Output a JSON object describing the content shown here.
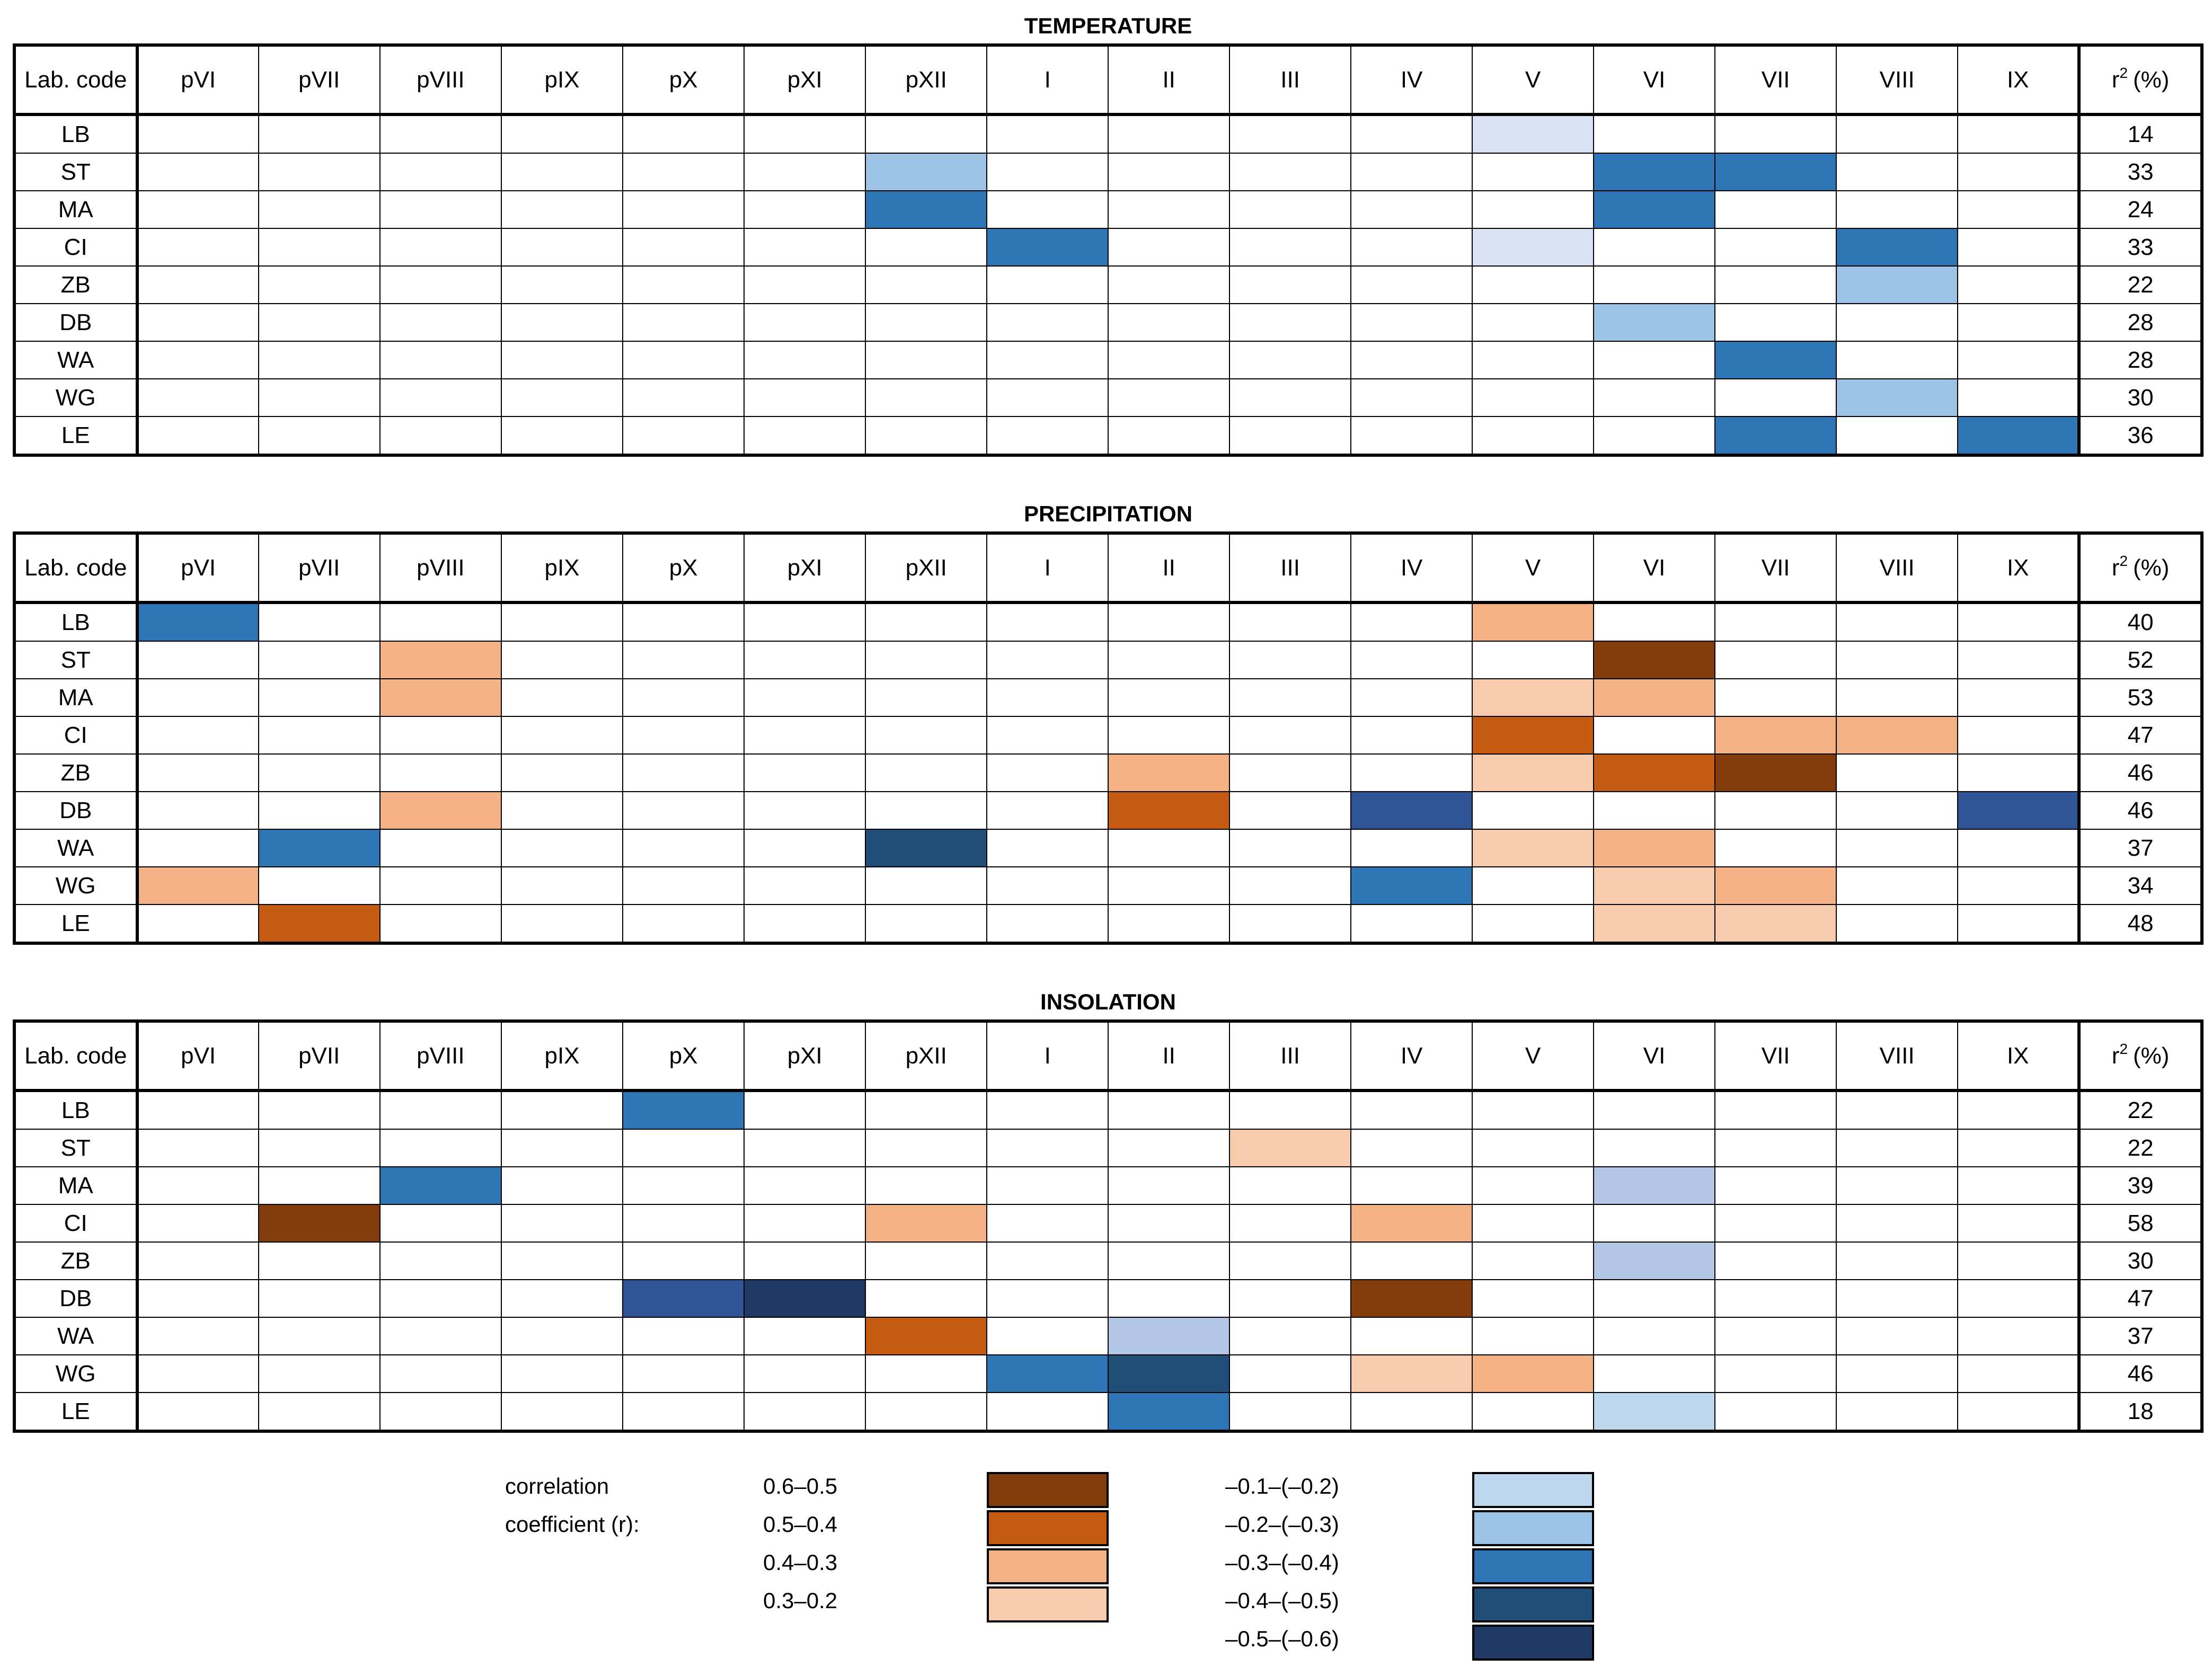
{
  "columns": [
    "Lab. code",
    "pVI",
    "pVII",
    "pVIII",
    "pIX",
    "pX",
    "pXI",
    "pXII",
    "I",
    "II",
    "III",
    "IV",
    "V",
    "VI",
    "VII",
    "VIII",
    "IX",
    "r",
    "2",
    "(%)"
  ],
  "colors": {
    "pos_06_05": "#843c0c",
    "pos_05_04": "#c55a11",
    "pos_04_03": "#f4b183",
    "pos_03_02": "#f8cbad",
    "neg_01_02": "#bdd7ee",
    "neg_02_03": "#9dc3e6",
    "neg_03_04": "#2e75b6",
    "neg_04_05": "#1f4e79",
    "neg_05_06": "#203864",
    "light_lavender": "#dae3f3",
    "periwinkle": "#b4c7e7",
    "slate_blue": "#2f5597"
  },
  "chart_data": [
    {
      "type": "heatmap",
      "title": "TEMPERATURE",
      "rows": [
        {
          "code": "LB",
          "r2": "14",
          "cells": {
            "V": "light_lavender"
          }
        },
        {
          "code": "ST",
          "r2": "33",
          "cells": {
            "pXII": "neg_02_03",
            "VI": "neg_03_04",
            "VII": "neg_03_04"
          }
        },
        {
          "code": "MA",
          "r2": "24",
          "cells": {
            "pXII": "neg_03_04",
            "VI": "neg_03_04"
          }
        },
        {
          "code": "CI",
          "r2": "33",
          "cells": {
            "I": "neg_03_04",
            "V": "light_lavender",
            "VIII": "neg_03_04"
          }
        },
        {
          "code": "ZB",
          "r2": "22",
          "cells": {
            "VIII": "neg_02_03"
          }
        },
        {
          "code": "DB",
          "r2": "28",
          "cells": {
            "VI": "neg_02_03"
          }
        },
        {
          "code": "WA",
          "r2": "28",
          "cells": {
            "VII": "neg_03_04"
          }
        },
        {
          "code": "WG",
          "r2": "30",
          "cells": {
            "VIII": "neg_02_03"
          }
        },
        {
          "code": "LE",
          "r2": "36",
          "cells": {
            "VII": "neg_03_04",
            "IX": "neg_03_04"
          }
        }
      ]
    },
    {
      "type": "heatmap",
      "title": "PRECIPITATION",
      "rows": [
        {
          "code": "LB",
          "r2": "40",
          "cells": {
            "pVI": "neg_03_04",
            "V": "pos_04_03"
          }
        },
        {
          "code": "ST",
          "r2": "52",
          "cells": {
            "pVIII": "pos_04_03",
            "VI": "pos_06_05"
          }
        },
        {
          "code": "MA",
          "r2": "53",
          "cells": {
            "pVIII": "pos_04_03",
            "V": "pos_03_02",
            "VI": "pos_04_03"
          }
        },
        {
          "code": "CI",
          "r2": "47",
          "cells": {
            "V": "pos_05_04",
            "VII": "pos_04_03",
            "VIII": "pos_04_03"
          }
        },
        {
          "code": "ZB",
          "r2": "46",
          "cells": {
            "II": "pos_04_03",
            "V": "pos_03_02",
            "VI": "pos_05_04",
            "VII": "pos_06_05"
          }
        },
        {
          "code": "DB",
          "r2": "46",
          "cells": {
            "pVIII": "pos_04_03",
            "II": "pos_05_04",
            "IV": "slate_blue",
            "IX": "slate_blue"
          }
        },
        {
          "code": "WA",
          "r2": "37",
          "cells": {
            "pVII": "neg_03_04",
            "pXII": "neg_04_05",
            "V": "pos_03_02",
            "VI": "pos_04_03"
          }
        },
        {
          "code": "WG",
          "r2": "34",
          "cells": {
            "pVI": "pos_04_03",
            "IV": "neg_03_04",
            "VI": "pos_03_02",
            "VII": "pos_04_03"
          }
        },
        {
          "code": "LE",
          "r2": "48",
          "cells": {
            "pVII": "pos_05_04",
            "VI": "pos_03_02",
            "VII": "pos_03_02"
          }
        }
      ]
    },
    {
      "type": "heatmap",
      "title": "INSOLATION",
      "rows": [
        {
          "code": "LB",
          "r2": "22",
          "cells": {
            "pX": "neg_03_04"
          }
        },
        {
          "code": "ST",
          "r2": "22",
          "cells": {
            "III": "pos_03_02"
          }
        },
        {
          "code": "MA",
          "r2": "39",
          "cells": {
            "pVIII": "neg_03_04",
            "VI": "periwinkle"
          }
        },
        {
          "code": "CI",
          "r2": "58",
          "cells": {
            "pVII": "pos_06_05",
            "pXII": "pos_04_03",
            "IV": "pos_04_03"
          }
        },
        {
          "code": "ZB",
          "r2": "30",
          "cells": {
            "VI": "periwinkle"
          }
        },
        {
          "code": "DB",
          "r2": "47",
          "cells": {
            "pX": "slate_blue",
            "pXI": "neg_05_06",
            "IV": "pos_06_05"
          }
        },
        {
          "code": "WA",
          "r2": "37",
          "cells": {
            "pXII": "pos_05_04",
            "II": "periwinkle"
          }
        },
        {
          "code": "WG",
          "r2": "46",
          "cells": {
            "I": "neg_03_04",
            "II": "neg_04_05",
            "IV": "pos_03_02",
            "V": "pos_04_03"
          }
        },
        {
          "code": "LE",
          "r2": "18",
          "cells": {
            "II": "neg_03_04",
            "VI": "neg_01_02"
          }
        }
      ]
    }
  ],
  "legend": {
    "label_line1": "correlation",
    "label_line2": "coefficient (r):",
    "positive": [
      {
        "range": "0.6–0.5",
        "color": "pos_06_05"
      },
      {
        "range": "0.5–0.4",
        "color": "pos_05_04"
      },
      {
        "range": "0.4–0.3",
        "color": "pos_04_03"
      },
      {
        "range": "0.3–0.2",
        "color": "pos_03_02"
      }
    ],
    "negative": [
      {
        "range": "–0.1–(–0.2)",
        "color": "neg_01_02"
      },
      {
        "range": "–0.2–(–0.3)",
        "color": "neg_02_03"
      },
      {
        "range": "–0.3–(–0.4)",
        "color": "neg_03_04"
      },
      {
        "range": "–0.4–(–0.5)",
        "color": "neg_04_05"
      },
      {
        "range": "–0.5–(–0.6)",
        "color": "neg_05_06"
      }
    ]
  }
}
